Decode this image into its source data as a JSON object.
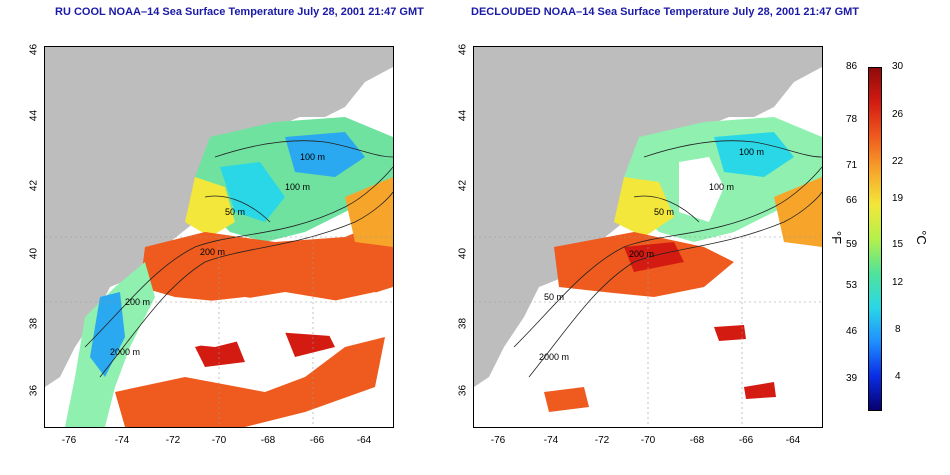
{
  "maps": [
    {
      "title": "RU COOL NOAA–14 Sea Surface Temperature July 28, 2001 21:47 GMT",
      "contour_labels": [
        "100 m",
        "100 m",
        "50 m",
        "200 m",
        "200 m",
        "2000 m"
      ]
    },
    {
      "title": "DECLOUDED NOAA–14 Sea Surface Temperature July 28, 2001 21:47 GMT",
      "contour_labels": [
        "100 m",
        "100 m",
        "50 m",
        "200 m",
        "50 m",
        "2000 m"
      ]
    }
  ],
  "axes": {
    "x_ticks": [
      "-76",
      "-74",
      "-72",
      "-70",
      "-68",
      "-66",
      "-64"
    ],
    "y_ticks": [
      "46",
      "44",
      "42",
      "40",
      "38",
      "36"
    ]
  },
  "colorbar": {
    "fahrenheit_ticks": [
      "86",
      "78",
      "71",
      "66",
      "59",
      "53",
      "46",
      "39"
    ],
    "celsius_ticks": [
      "30",
      "26",
      "22",
      "19",
      "15",
      "12",
      "8",
      "4"
    ],
    "fahrenheit_unit": "°F",
    "celsius_unit": "°C",
    "colors": [
      "#08006e",
      "#0a2de6",
      "#1f8fff",
      "#2ad7e6",
      "#4fe39a",
      "#b4f04a",
      "#f2e73a",
      "#f7a52a",
      "#ef5a1e",
      "#d41b12",
      "#8f0a0a"
    ]
  }
}
